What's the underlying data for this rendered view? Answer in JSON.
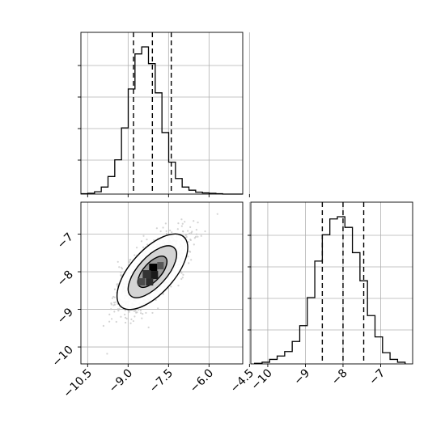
{
  "chart_data": [
    {
      "type": "histogram",
      "panel": "top-left",
      "grid": true,
      "x": [
        -10.62,
        -10.37,
        -10.12,
        -9.87,
        -9.62,
        -9.37,
        -9.12,
        -8.87,
        -8.62,
        -8.37,
        -8.12,
        -7.87,
        -7.62,
        -7.37,
        -7.12,
        -6.87,
        -6.62,
        -6.37,
        -6.12,
        -5.87,
        -5.62,
        -5.37,
        -5.12,
        -4.87
      ],
      "counts": [
        1,
        2,
        6,
        18,
        45,
        88,
        170,
        270,
        360,
        378,
        335,
        260,
        158,
        82,
        40,
        18,
        10,
        5,
        3,
        2,
        1,
        0,
        0,
        0
      ],
      "xlim": [
        -10.75,
        -4.75
      ],
      "quantiles": [
        -8.8,
        -8.1,
        -7.4
      ],
      "x_ticks": [
        -10.5,
        -9.0,
        -7.5,
        -6.0,
        -4.5
      ]
    },
    {
      "type": "histogram2d",
      "panel": "bottom-left",
      "grid": true,
      "xlim": [
        -10.75,
        -4.75
      ],
      "ylim": [
        -10.45,
        -6.15
      ],
      "x_ticks": [
        -10.5,
        -9.0,
        -7.5,
        -6.0,
        -4.5
      ],
      "x_tick_labels": [
        "−10.5",
        "−9.0",
        "−7.5",
        "−6.0",
        "−4.5"
      ],
      "y_ticks": [
        -10,
        -9,
        -8,
        -7
      ],
      "y_tick_labels": [
        "−10",
        "−9",
        "−8",
        "−7"
      ],
      "scatter_center": [
        -8.1,
        -8.0
      ],
      "contour_levels": 3
    },
    {
      "type": "histogram",
      "panel": "bottom-right",
      "grid": true,
      "x": [
        -10.25,
        -10.05,
        -9.85,
        -9.65,
        -9.45,
        -9.25,
        -9.05,
        -8.85,
        -8.65,
        -8.45,
        -8.25,
        -8.05,
        -7.85,
        -7.65,
        -7.45,
        -7.25,
        -7.05,
        -6.85,
        -6.65,
        -6.45
      ],
      "counts": [
        1,
        3,
        8,
        14,
        22,
        40,
        68,
        118,
        183,
        230,
        258,
        262,
        243,
        198,
        148,
        86,
        48,
        20,
        8,
        3
      ],
      "xlim": [
        -10.45,
        -6.15
      ],
      "quantiles": [
        -8.55,
        -8.0,
        -7.45
      ],
      "x_ticks": [
        -10,
        -9,
        -8,
        -7
      ],
      "x_tick_labels": [
        "−10",
        "−9",
        "−8",
        "−7"
      ]
    }
  ]
}
